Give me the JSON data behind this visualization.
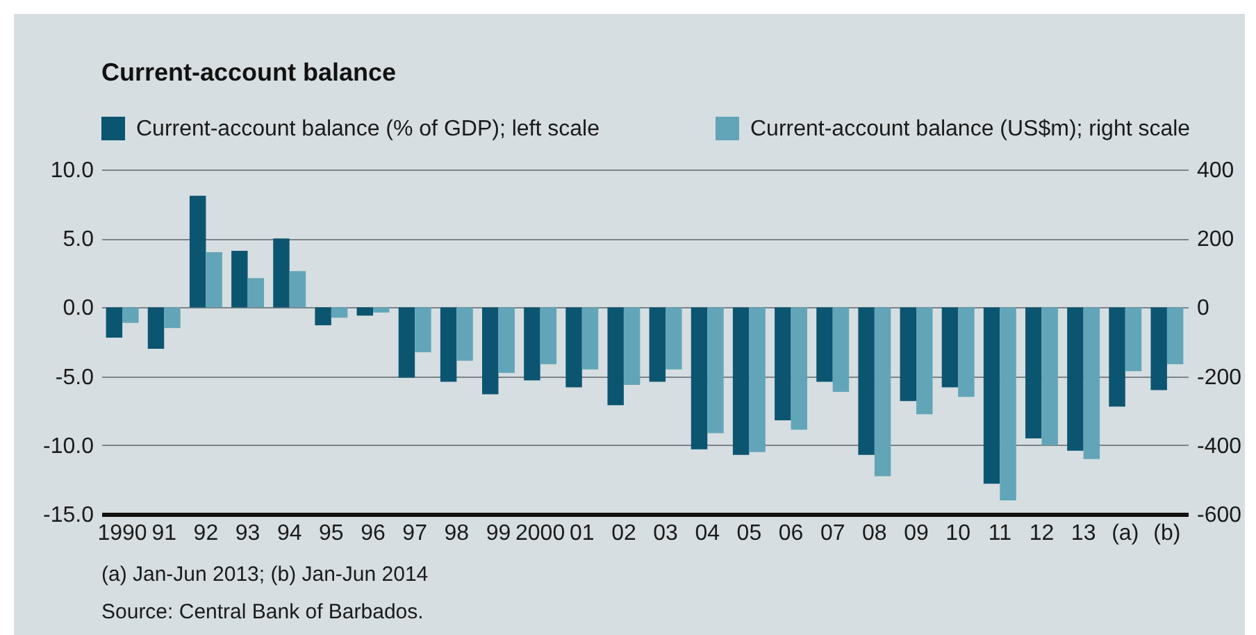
{
  "chart_data": {
    "type": "bar",
    "title": "Current-account balance",
    "categories": [
      "1990",
      "91",
      "92",
      "93",
      "94",
      "95",
      "96",
      "97",
      "98",
      "99",
      "2000",
      "01",
      "02",
      "03",
      "04",
      "05",
      "06",
      "07",
      "08",
      "09",
      "10",
      "11",
      "12",
      "13",
      "(a)",
      "(b)"
    ],
    "series": [
      {
        "name": "Current-account balance (% of GDP); left scale",
        "color": "#0c5571",
        "values": [
          -2.2,
          -3.0,
          8.1,
          4.1,
          5.0,
          -1.3,
          -0.6,
          -5.1,
          -5.4,
          -6.3,
          -5.3,
          -5.8,
          -7.1,
          -5.4,
          -10.3,
          -10.7,
          -8.2,
          -5.4,
          -10.7,
          -6.8,
          -5.8,
          -12.8,
          -9.5,
          -10.4,
          -7.2,
          -6.0
        ]
      },
      {
        "name": "Current-account balance (US$m); right scale",
        "color": "#62a5b8",
        "axis": "y2",
        "values": [
          -45,
          -60,
          160,
          85,
          105,
          -30,
          -15,
          -130,
          -155,
          -190,
          -165,
          -180,
          -225,
          -180,
          -365,
          -420,
          -355,
          -245,
          -490,
          -310,
          -260,
          -560,
          -400,
          -440,
          -185,
          -165
        ]
      }
    ],
    "ylim": [
      -15,
      10
    ],
    "yticks": [
      {
        "value": -15,
        "label": "-15.0"
      },
      {
        "value": -10,
        "label": "-10.0"
      },
      {
        "value": -5,
        "label": "-5.0"
      },
      {
        "value": 0,
        "label": "0.0"
      },
      {
        "value": 5,
        "label": "5.0"
      },
      {
        "value": 10,
        "label": "10.0"
      }
    ],
    "y2lim": [
      -600,
      400
    ],
    "y2ticks": [
      -600,
      -400,
      -200,
      0,
      200,
      400
    ],
    "grid": "y",
    "legend": "top",
    "annotations": [
      "(a) Jan-Jun 2013; (b) Jan-Jun 2014",
      "Source: Central Bank of Barbados."
    ]
  }
}
